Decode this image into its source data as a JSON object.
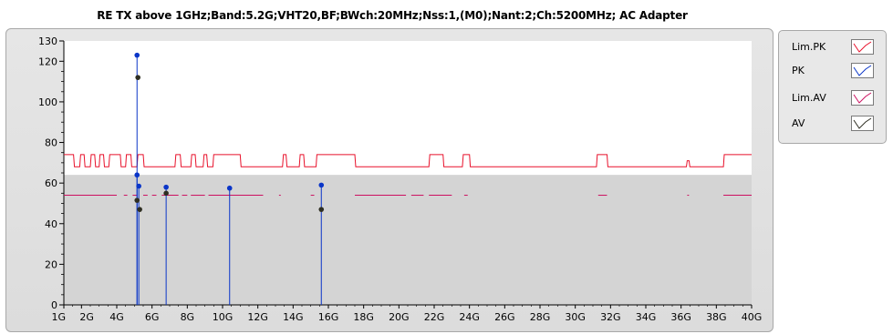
{
  "chart_data": {
    "type": "line",
    "title": "RE TX above 1GHz;Band:5.2G;VHT20,BF;BWch:20MHz;Nss:1,(M0);Nant:2;Ch:5200MHz; AC Adapter",
    "xlabel": "",
    "ylabel": "",
    "xlim": [
      1,
      40
    ],
    "ylim": [
      0,
      130
    ],
    "x_ticks": [
      {
        "value": 1,
        "label": "1G"
      },
      {
        "value": 2,
        "label": "2G"
      },
      {
        "value": 4,
        "label": "4G"
      },
      {
        "value": 6,
        "label": "6G"
      },
      {
        "value": 8,
        "label": "8G"
      },
      {
        "value": 10,
        "label": "10G"
      },
      {
        "value": 12,
        "label": "12G"
      },
      {
        "value": 14,
        "label": "14G"
      },
      {
        "value": 16,
        "label": "16G"
      },
      {
        "value": 18,
        "label": "18G"
      },
      {
        "value": 20,
        "label": "20G"
      },
      {
        "value": 22,
        "label": "22G"
      },
      {
        "value": 24,
        "label": "24G"
      },
      {
        "value": 26,
        "label": "26G"
      },
      {
        "value": 28,
        "label": "28G"
      },
      {
        "value": 30,
        "label": "30G"
      },
      {
        "value": 32,
        "label": "32G"
      },
      {
        "value": 34,
        "label": "34G"
      },
      {
        "value": 36,
        "label": "36G"
      },
      {
        "value": 38,
        "label": "38G"
      },
      {
        "value": 40,
        "label": "40G"
      }
    ],
    "y_ticks": [
      0,
      20,
      40,
      60,
      80,
      100,
      120,
      130
    ],
    "limit_pk": {
      "name": "Lim.PK",
      "color": "#e8102a",
      "x": [
        1,
        1.55,
        1.6,
        1.9,
        1.95,
        2.15,
        2.2,
        2.5,
        2.55,
        2.75,
        2.8,
        3.0,
        3.05,
        3.25,
        3.3,
        3.55,
        3.6,
        4.2,
        4.25,
        4.5,
        4.55,
        4.8,
        4.85,
        5.15,
        5.2,
        5.5,
        5.55,
        7.3,
        7.35,
        7.6,
        7.65,
        8.2,
        8.25,
        8.45,
        8.5,
        8.9,
        8.95,
        9.1,
        9.15,
        9.45,
        9.5,
        11.0,
        11.05,
        13.4,
        13.45,
        13.6,
        13.65,
        14.35,
        14.4,
        14.6,
        14.65,
        15.3,
        15.35,
        17.5,
        17.55,
        21.7,
        21.75,
        22.5,
        22.55,
        23.6,
        23.65,
        24.0,
        24.05,
        31.2,
        31.25,
        31.8,
        31.85,
        36.3,
        36.35,
        36.45,
        36.5,
        38.4,
        38.45,
        40
      ],
      "y": [
        74,
        74,
        68,
        68,
        74,
        74,
        68,
        68,
        74,
        74,
        68,
        68,
        74,
        74,
        68,
        68,
        74,
        74,
        68,
        68,
        74,
        74,
        68,
        68,
        74,
        74,
        68,
        68,
        74,
        74,
        68,
        68,
        74,
        74,
        68,
        68,
        74,
        74,
        68,
        68,
        74,
        74,
        68,
        68,
        74,
        74,
        68,
        68,
        74,
        74,
        68,
        68,
        74,
        74,
        68,
        68,
        74,
        74,
        68,
        68,
        74,
        74,
        68,
        68,
        74,
        74,
        68,
        68,
        71,
        71,
        68,
        68,
        74,
        74
      ]
    },
    "limit_av": {
      "name": "Lim.AV",
      "color": "#cc1060",
      "segments": [
        [
          1,
          4.0
        ],
        [
          4.4,
          4.6
        ],
        [
          4.9,
          5.15
        ],
        [
          5.5,
          5.75
        ],
        [
          6.0,
          6.25
        ],
        [
          6.55,
          7.5
        ],
        [
          7.7,
          8.0
        ],
        [
          8.2,
          9.0
        ],
        [
          9.2,
          12.3
        ],
        [
          13.2,
          13.3
        ],
        [
          15.0,
          15.2
        ],
        [
          17.5,
          20.4
        ],
        [
          20.7,
          21.4
        ],
        [
          21.7,
          23.0
        ],
        [
          23.7,
          23.9
        ],
        [
          31.3,
          31.8
        ],
        [
          36.35,
          36.45
        ],
        [
          38.4,
          40
        ]
      ],
      "value": 54
    },
    "pk": {
      "name": "PK",
      "color": "#0a35c8",
      "points": [
        {
          "x": 5.15,
          "y": 123
        },
        {
          "x": 5.15,
          "y": 64
        },
        {
          "x": 5.25,
          "y": 58.5
        },
        {
          "x": 6.8,
          "y": 58
        },
        {
          "x": 10.4,
          "y": 57.5
        },
        {
          "x": 15.6,
          "y": 59
        }
      ]
    },
    "av": {
      "name": "AV",
      "color": "#2e2e22",
      "points": [
        {
          "x": 5.2,
          "y": 112
        },
        {
          "x": 5.15,
          "y": 51.5
        },
        {
          "x": 5.3,
          "y": 47
        },
        {
          "x": 6.8,
          "y": 55
        },
        {
          "x": 15.6,
          "y": 47
        }
      ]
    },
    "colors": {
      "plot_bg_upper": "#ffffff",
      "plot_bg_lower": "#d4d4d4",
      "frame": "#e0e0e0",
      "vline": "#0a35c8"
    },
    "legend": {
      "placement": "right",
      "items": [
        {
          "label": "Lim.PK",
          "color": "#e8102a"
        },
        {
          "label": "PK",
          "color": "#0a35c8"
        },
        {
          "label": "Lim.AV",
          "color": "#cc1060"
        },
        {
          "label": "AV",
          "color": "#2e2e22"
        }
      ]
    }
  }
}
